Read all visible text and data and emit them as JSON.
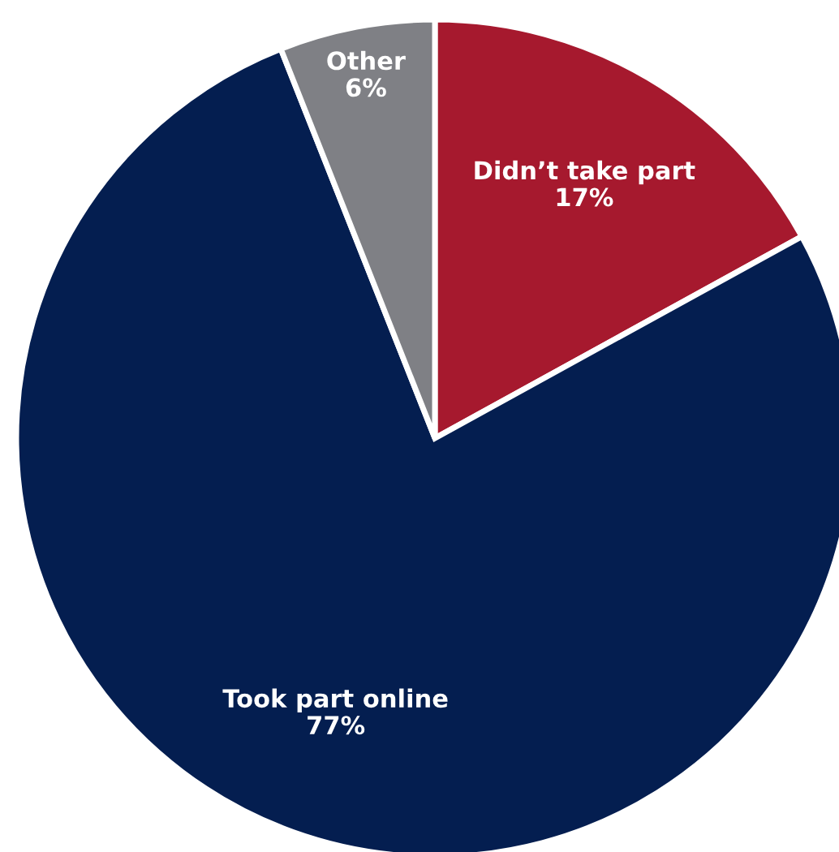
{
  "chart_data": {
    "type": "pie",
    "categories": [
      "Didn’t take part",
      "Took part online",
      "Other"
    ],
    "values": [
      17,
      77,
      6
    ],
    "colors": [
      "#a6192e",
      "#041e50",
      "#7f8085"
    ],
    "value_labels": [
      "17%",
      "77%",
      "6%"
    ]
  }
}
